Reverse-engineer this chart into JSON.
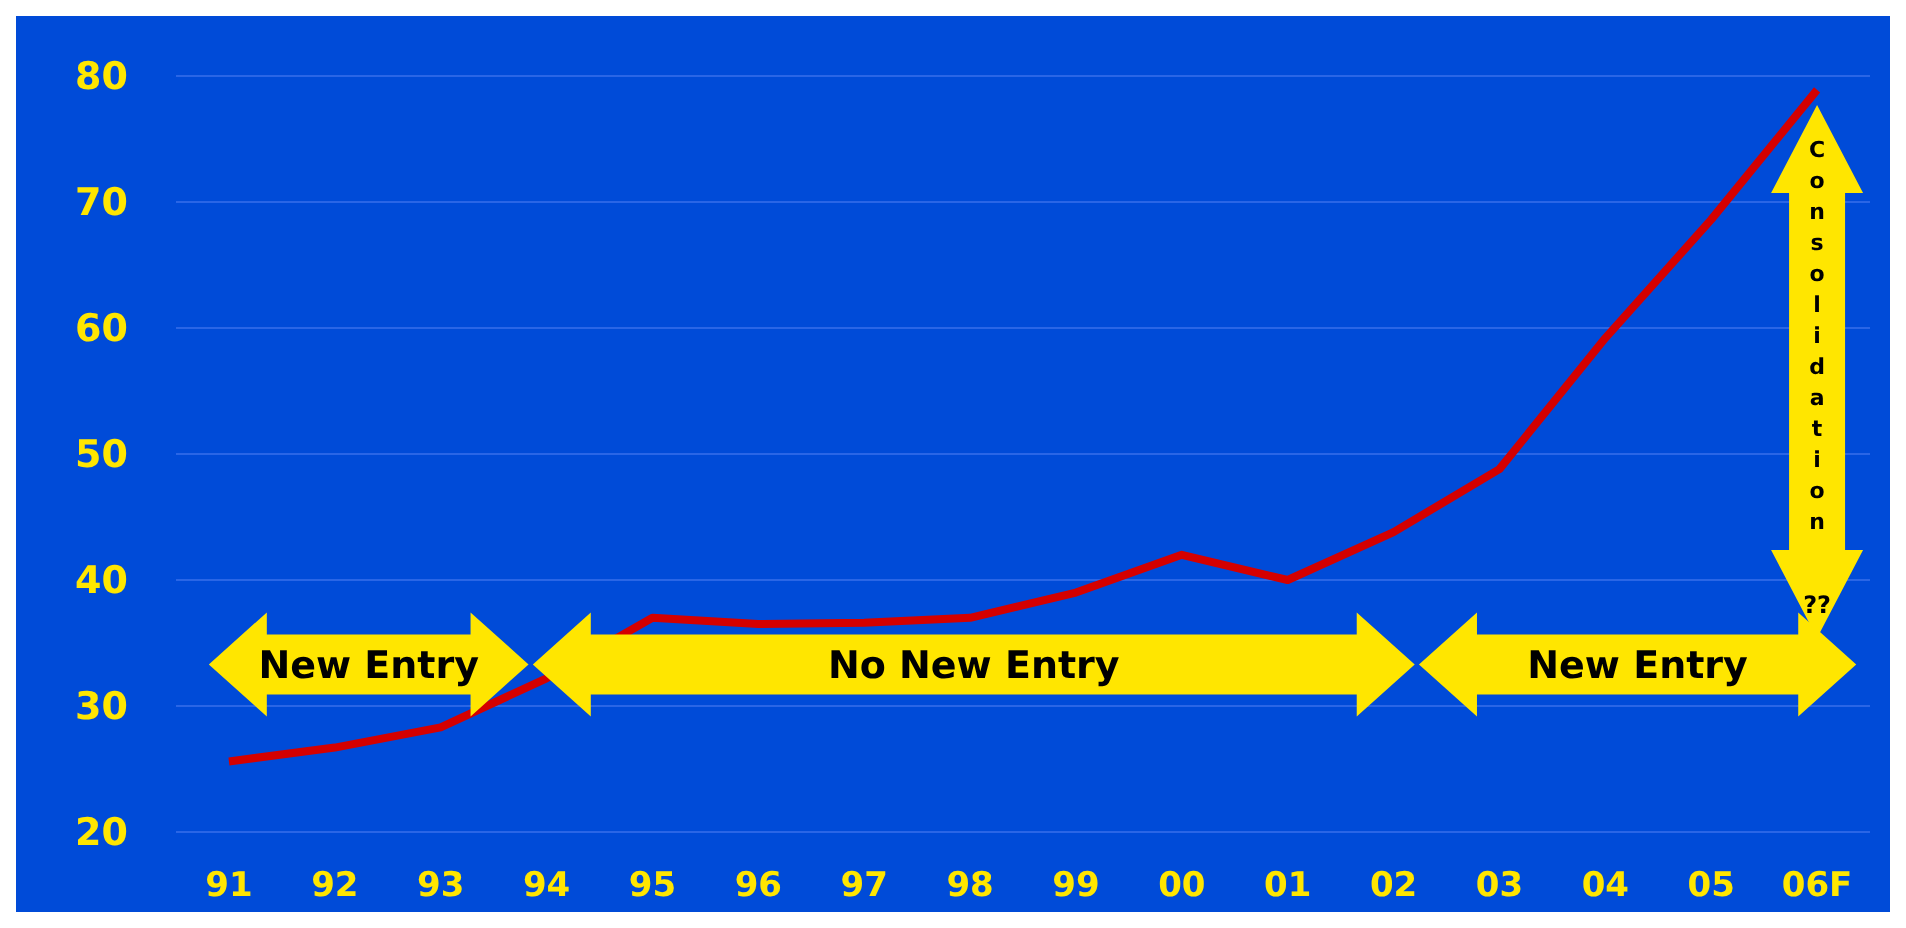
{
  "chart_data": {
    "type": "line",
    "categories": [
      "91",
      "92",
      "93",
      "94",
      "95",
      "96",
      "97",
      "98",
      "99",
      "00",
      "01",
      "02",
      "03",
      "04",
      "05",
      "06F"
    ],
    "series": [
      {
        "color": "#d40000",
        "values": [
          25.6,
          26.7,
          28.3,
          32.2,
          37,
          36.5,
          36.6,
          37,
          39,
          42,
          40,
          43.8,
          48.8,
          59.2,
          68.6,
          78.9
        ]
      }
    ],
    "ylim": [
      20,
      80
    ],
    "yticks": [
      20,
      30,
      40,
      50,
      60,
      70,
      80
    ],
    "grid": "y",
    "marker": "none",
    "line_style": "solid",
    "annotations": [
      "New Entry",
      "No New Entry",
      "New Entry",
      "Consolidation",
      "??"
    ]
  }
}
